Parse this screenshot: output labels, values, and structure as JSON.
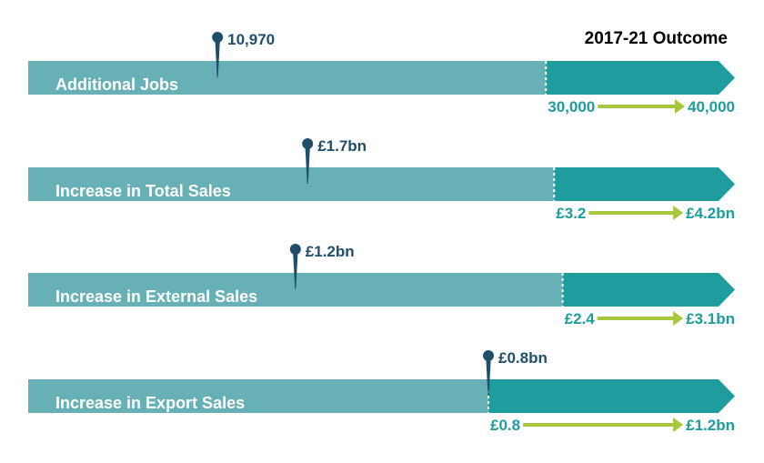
{
  "colors": {
    "bar": "#67b0b5",
    "outcome": "#1e9c9e",
    "pin": "#1f4e6b",
    "arrow": "#a9c73c",
    "header": "#1e9c9e",
    "label_text": "#ffffff"
  },
  "chart_data": {
    "type": "bar",
    "title": "2017-21 Outcome",
    "rows": [
      {
        "label": "Additional Jobs",
        "achieved": 10970,
        "achieved_label": "10,970",
        "outcome_low": 30000,
        "outcome_high": 40000,
        "outcome_low_label": "30,000",
        "outcome_high_label": "40,000",
        "unit": "jobs"
      },
      {
        "label": "Increase in Total Sales",
        "achieved": 1.7,
        "achieved_label": "£1.7bn",
        "outcome_low": 3.2,
        "outcome_high": 4.2,
        "outcome_low_label": "£3.2",
        "outcome_high_label": "£4.2bn",
        "unit": "£bn"
      },
      {
        "label": "Increase in External Sales",
        "achieved": 1.2,
        "achieved_label": "£1.2bn",
        "outcome_low": 2.4,
        "outcome_high": 3.1,
        "outcome_low_label": "£2.4",
        "outcome_high_label": "£3.1bn",
        "unit": "£bn"
      },
      {
        "label": "Increase in Export Sales",
        "achieved": 0.8,
        "achieved_label": "£0.8bn",
        "outcome_low": 0.8,
        "outcome_high": 1.2,
        "outcome_low_label": "£0.8",
        "outcome_high_label": "£1.2bn",
        "unit": "£bn"
      }
    ]
  }
}
